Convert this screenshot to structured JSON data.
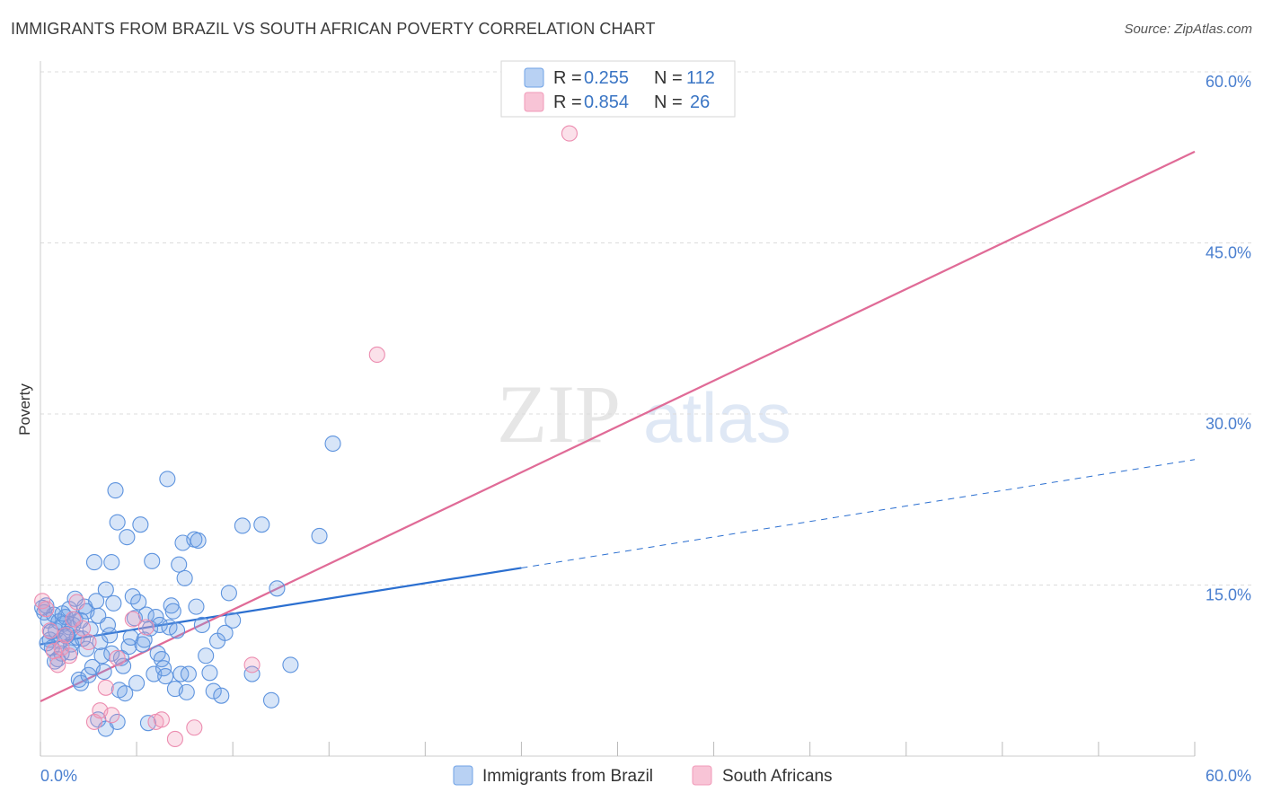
{
  "header": {
    "title": "IMMIGRANTS FROM BRAZIL VS SOUTH AFRICAN POVERTY CORRELATION CHART",
    "source": "Source: ZipAtlas.com"
  },
  "watermark": {
    "zip": "ZIP",
    "atlas": "atlas"
  },
  "colors": {
    "blue": "#6fa2e6",
    "blue_line": "#2b6fd0",
    "pink": "#f19ab8",
    "pink_line": "#e06b97",
    "grid": "#dcdcdc",
    "tick_text": "#4a7fcf"
  },
  "chart_data": {
    "type": "scatter",
    "title": "IMMIGRANTS FROM BRAZIL VS SOUTH AFRICAN POVERTY CORRELATION CHART",
    "xlabel": "",
    "ylabel": "Poverty",
    "xlim": [
      0,
      60
    ],
    "ylim": [
      0,
      60
    ],
    "x_tick_labels": [
      "0.0%",
      "60.0%"
    ],
    "y_ticks": [
      15,
      30,
      45,
      60
    ],
    "y_tick_labels": [
      "15.0%",
      "30.0%",
      "45.0%",
      "60.0%"
    ],
    "legend": [
      {
        "r_label": "R =",
        "r_value": "0.255",
        "n_label": "N =",
        "n_value": "112"
      },
      {
        "r_label": "R =",
        "r_value": "0.854",
        "n_label": "N =",
        "n_value": "26"
      }
    ],
    "series": [
      {
        "name": "Immigrants from Brazil",
        "color": "#6fa2e6",
        "trend": {
          "x0": 0,
          "y0": 9.8,
          "x1": 25,
          "y1": 16.5,
          "dash_x1": 60,
          "dash_y1": 26
        },
        "points": [
          [
            0.2,
            12.6
          ],
          [
            0.3,
            13.2
          ],
          [
            0.4,
            11.9
          ],
          [
            0.5,
            10.2
          ],
          [
            0.6,
            9.5
          ],
          [
            0.7,
            12.4
          ],
          [
            0.8,
            11.0
          ],
          [
            0.9,
            8.5
          ],
          [
            1.0,
            10.1
          ],
          [
            1.1,
            9.0
          ],
          [
            1.2,
            11.6
          ],
          [
            1.3,
            12.2
          ],
          [
            1.4,
            10.7
          ],
          [
            1.5,
            11.3
          ],
          [
            1.6,
            9.8
          ],
          [
            1.7,
            11.5
          ],
          [
            1.8,
            12.0
          ],
          [
            1.9,
            10.4
          ],
          [
            2.0,
            6.7
          ],
          [
            2.1,
            6.4
          ],
          [
            2.2,
            10.3
          ],
          [
            2.3,
            13.1
          ],
          [
            2.4,
            12.7
          ],
          [
            2.5,
            7.1
          ],
          [
            2.6,
            11.1
          ],
          [
            2.7,
            7.8
          ],
          [
            2.8,
            17.0
          ],
          [
            2.9,
            13.6
          ],
          [
            3.0,
            12.3
          ],
          [
            3.1,
            10.0
          ],
          [
            3.2,
            8.8
          ],
          [
            3.3,
            7.4
          ],
          [
            3.4,
            14.6
          ],
          [
            3.5,
            11.5
          ],
          [
            3.6,
            10.6
          ],
          [
            3.7,
            17.0
          ],
          [
            3.8,
            13.4
          ],
          [
            3.9,
            23.3
          ],
          [
            4.0,
            20.5
          ],
          [
            4.1,
            5.8
          ],
          [
            4.2,
            8.6
          ],
          [
            4.3,
            7.9
          ],
          [
            4.4,
            5.5
          ],
          [
            4.5,
            19.2
          ],
          [
            4.6,
            9.6
          ],
          [
            4.7,
            10.4
          ],
          [
            4.8,
            14.0
          ],
          [
            4.9,
            12.1
          ],
          [
            5.0,
            6.4
          ],
          [
            5.1,
            13.5
          ],
          [
            5.2,
            20.3
          ],
          [
            5.3,
            9.8
          ],
          [
            5.4,
            10.2
          ],
          [
            5.5,
            12.4
          ],
          [
            5.6,
            2.9
          ],
          [
            5.7,
            11.2
          ],
          [
            5.8,
            17.1
          ],
          [
            5.9,
            7.2
          ],
          [
            6.0,
            12.2
          ],
          [
            6.1,
            9.0
          ],
          [
            6.2,
            11.5
          ],
          [
            6.3,
            8.5
          ],
          [
            6.4,
            7.7
          ],
          [
            6.5,
            7.0
          ],
          [
            6.6,
            24.3
          ],
          [
            6.7,
            11.3
          ],
          [
            6.8,
            13.2
          ],
          [
            6.9,
            12.7
          ],
          [
            7.0,
            5.9
          ],
          [
            7.1,
            11.0
          ],
          [
            7.2,
            16.8
          ],
          [
            7.3,
            7.2
          ],
          [
            7.4,
            18.7
          ],
          [
            7.5,
            15.6
          ],
          [
            7.6,
            5.6
          ],
          [
            7.7,
            7.2
          ],
          [
            8.0,
            19.0
          ],
          [
            8.1,
            13.1
          ],
          [
            8.2,
            18.9
          ],
          [
            8.4,
            11.5
          ],
          [
            8.6,
            8.8
          ],
          [
            8.8,
            7.3
          ],
          [
            9.0,
            5.7
          ],
          [
            9.2,
            10.1
          ],
          [
            9.4,
            5.3
          ],
          [
            9.6,
            10.8
          ],
          [
            9.8,
            14.3
          ],
          [
            10.0,
            11.9
          ],
          [
            10.5,
            20.2
          ],
          [
            11.0,
            7.2
          ],
          [
            11.5,
            20.3
          ],
          [
            12.0,
            4.9
          ],
          [
            12.3,
            14.7
          ],
          [
            13.0,
            8.0
          ],
          [
            14.5,
            19.3
          ],
          [
            15.2,
            27.4
          ],
          [
            1.5,
            12.9
          ],
          [
            1.8,
            13.8
          ],
          [
            2.1,
            11.9
          ],
          [
            2.4,
            9.4
          ],
          [
            0.1,
            13.0
          ],
          [
            0.35,
            9.9
          ],
          [
            0.55,
            10.9
          ],
          [
            0.75,
            8.3
          ],
          [
            0.95,
            11.8
          ],
          [
            1.15,
            12.5
          ],
          [
            1.35,
            10.5
          ],
          [
            1.55,
            9.1
          ],
          [
            3.0,
            3.2
          ],
          [
            3.4,
            2.4
          ],
          [
            3.7,
            9.0
          ],
          [
            4.0,
            3.0
          ]
        ]
      },
      {
        "name": "South Africans",
        "color": "#f19ab8",
        "trend": {
          "x0": 0,
          "y0": 4.8,
          "x1": 60,
          "y1": 53.0
        },
        "points": [
          [
            0.1,
            13.6
          ],
          [
            0.3,
            12.9
          ],
          [
            0.5,
            11.0
          ],
          [
            0.7,
            9.2
          ],
          [
            0.9,
            8.0
          ],
          [
            1.1,
            9.5
          ],
          [
            1.3,
            10.6
          ],
          [
            1.5,
            8.8
          ],
          [
            1.7,
            12.0
          ],
          [
            1.9,
            13.5
          ],
          [
            2.2,
            11.2
          ],
          [
            2.5,
            10.0
          ],
          [
            2.8,
            3.0
          ],
          [
            3.1,
            4.0
          ],
          [
            3.4,
            6.0
          ],
          [
            3.7,
            3.6
          ],
          [
            4.0,
            8.6
          ],
          [
            4.8,
            12.0
          ],
          [
            5.5,
            11.3
          ],
          [
            6.0,
            3.0
          ],
          [
            7.0,
            1.5
          ],
          [
            8.0,
            2.5
          ],
          [
            11.0,
            8.0
          ],
          [
            17.5,
            35.2
          ],
          [
            27.5,
            54.6
          ],
          [
            6.3,
            3.2
          ]
        ]
      }
    ]
  },
  "bottom_legend": {
    "brazil": "Immigrants from Brazil",
    "south_africans": "South Africans"
  }
}
